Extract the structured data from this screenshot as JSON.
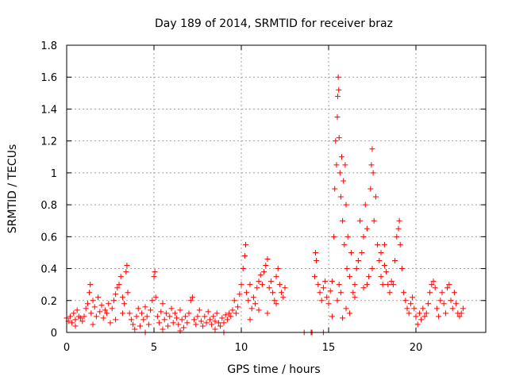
{
  "chart_data": {
    "type": "scatter",
    "title": "Day 189 of 2014, SRMTID for receiver braz",
    "xlabel": "GPS time / hours",
    "ylabel": "SRMTID / TECUs",
    "xlim": [
      0,
      24
    ],
    "ylim": [
      0,
      1.8
    ],
    "xticks": [
      {
        "value": 0,
        "label": "0"
      },
      {
        "value": 5,
        "label": "5"
      },
      {
        "value": 10,
        "label": "10"
      },
      {
        "value": 15,
        "label": "15"
      },
      {
        "value": 20,
        "label": "20"
      }
    ],
    "yticks": [
      {
        "value": 0,
        "label": "0"
      },
      {
        "value": 0.2,
        "label": "0.2"
      },
      {
        "value": 0.4,
        "label": "0.4"
      },
      {
        "value": 0.6,
        "label": "0.6"
      },
      {
        "value": 0.8,
        "label": "0.8"
      },
      {
        "value": 1.0,
        "label": "1"
      },
      {
        "value": 1.2,
        "label": "1.2"
      },
      {
        "value": 1.4,
        "label": "1.4"
      },
      {
        "value": 1.6,
        "label": "1.6"
      },
      {
        "value": 1.8,
        "label": "1.8"
      }
    ],
    "grid": true,
    "marker": "+",
    "colors": {
      "points": "#ff0000",
      "grid": "#a0a0a0",
      "axes": "#000000"
    },
    "series": [
      {
        "name": "SRMTID",
        "points": [
          [
            0.0,
            0.09
          ],
          [
            0.1,
            0.07
          ],
          [
            0.2,
            0.1
          ],
          [
            0.3,
            0.06
          ],
          [
            0.4,
            0.12
          ],
          [
            0.5,
            0.08
          ],
          [
            0.6,
            0.14
          ],
          [
            0.7,
            0.1
          ],
          [
            0.8,
            0.09
          ],
          [
            0.9,
            0.07
          ],
          [
            1.0,
            0.1
          ],
          [
            1.1,
            0.15
          ],
          [
            1.2,
            0.18
          ],
          [
            1.3,
            0.25
          ],
          [
            1.35,
            0.3
          ],
          [
            1.4,
            0.12
          ],
          [
            1.5,
            0.2
          ],
          [
            1.6,
            0.16
          ],
          [
            1.7,
            0.1
          ],
          [
            1.8,
            0.22
          ],
          [
            1.9,
            0.13
          ],
          [
            2.0,
            0.17
          ],
          [
            2.1,
            0.09
          ],
          [
            2.2,
            0.14
          ],
          [
            2.3,
            0.12
          ],
          [
            2.4,
            0.18
          ],
          [
            2.5,
            0.06
          ],
          [
            2.6,
            0.15
          ],
          [
            2.7,
            0.2
          ],
          [
            2.8,
            0.24
          ],
          [
            2.9,
            0.28
          ],
          [
            3.0,
            0.3
          ],
          [
            3.1,
            0.35
          ],
          [
            3.2,
            0.22
          ],
          [
            3.3,
            0.18
          ],
          [
            3.4,
            0.38
          ],
          [
            3.45,
            0.42
          ],
          [
            3.5,
            0.25
          ],
          [
            3.6,
            0.12
          ],
          [
            3.7,
            0.08
          ],
          [
            3.8,
            0.05
          ],
          [
            3.9,
            0.02
          ],
          [
            4.0,
            0.1
          ],
          [
            4.1,
            0.15
          ],
          [
            4.2,
            0.04
          ],
          [
            4.3,
            0.12
          ],
          [
            4.4,
            0.08
          ],
          [
            4.5,
            0.16
          ],
          [
            4.6,
            0.1
          ],
          [
            4.7,
            0.05
          ],
          [
            4.8,
            0.14
          ],
          [
            4.9,
            0.2
          ],
          [
            5.0,
            0.35
          ],
          [
            5.05,
            0.38
          ],
          [
            5.1,
            0.22
          ],
          [
            5.2,
            0.1
          ],
          [
            5.3,
            0.06
          ],
          [
            5.4,
            0.13
          ],
          [
            5.5,
            0.18
          ],
          [
            5.6,
            0.08
          ],
          [
            5.7,
            0.12
          ],
          [
            5.8,
            0.04
          ],
          [
            5.9,
            0.1
          ],
          [
            6.0,
            0.15
          ],
          [
            6.1,
            0.06
          ],
          [
            6.2,
            0.12
          ],
          [
            6.3,
            0.09
          ],
          [
            6.4,
            0.05
          ],
          [
            6.5,
            0.14
          ],
          [
            6.6,
            0.08
          ],
          [
            6.7,
            0.03
          ],
          [
            6.8,
            0.1
          ],
          [
            6.9,
            0.06
          ],
          [
            7.0,
            0.12
          ],
          [
            7.1,
            0.2
          ],
          [
            7.2,
            0.22
          ],
          [
            7.3,
            0.08
          ],
          [
            7.4,
            0.05
          ],
          [
            7.5,
            0.1
          ],
          [
            7.6,
            0.14
          ],
          [
            7.7,
            0.07
          ],
          [
            7.8,
            0.04
          ],
          [
            7.9,
            0.1
          ],
          [
            8.0,
            0.06
          ],
          [
            8.1,
            0.13
          ],
          [
            8.2,
            0.08
          ],
          [
            8.3,
            0.05
          ],
          [
            8.4,
            0.1
          ],
          [
            8.5,
            0.07
          ],
          [
            8.6,
            0.12
          ],
          [
            8.7,
            0.06
          ],
          [
            8.8,
            0.04
          ],
          [
            8.9,
            0.09
          ],
          [
            9.0,
            0.06
          ],
          [
            9.1,
            0.11
          ],
          [
            9.2,
            0.08
          ],
          [
            9.3,
            0.12
          ],
          [
            9.4,
            0.1
          ],
          [
            9.5,
            0.14
          ],
          [
            9.6,
            0.2
          ],
          [
            9.7,
            0.12
          ],
          [
            9.8,
            0.16
          ],
          [
            9.9,
            0.24
          ],
          [
            10.0,
            0.3
          ],
          [
            10.1,
            0.4
          ],
          [
            10.2,
            0.48
          ],
          [
            10.25,
            0.55
          ],
          [
            10.3,
            0.25
          ],
          [
            10.4,
            0.2
          ],
          [
            10.5,
            0.3
          ],
          [
            10.6,
            0.15
          ],
          [
            10.7,
            0.22
          ],
          [
            10.8,
            0.18
          ],
          [
            10.9,
            0.28
          ],
          [
            11.0,
            0.32
          ],
          [
            11.1,
            0.36
          ],
          [
            11.2,
            0.3
          ],
          [
            11.3,
            0.38
          ],
          [
            11.4,
            0.42
          ],
          [
            11.5,
            0.46
          ],
          [
            11.6,
            0.28
          ],
          [
            11.7,
            0.32
          ],
          [
            11.8,
            0.25
          ],
          [
            11.9,
            0.2
          ],
          [
            12.0,
            0.35
          ],
          [
            12.1,
            0.4
          ],
          [
            12.2,
            0.3
          ],
          [
            12.3,
            0.25
          ],
          [
            12.4,
            0.22
          ],
          [
            12.5,
            0.28
          ],
          [
            14.0,
            0.0
          ],
          [
            14.05,
            0.0
          ],
          [
            14.2,
            0.35
          ],
          [
            14.25,
            0.5
          ],
          [
            14.3,
            0.45
          ],
          [
            14.4,
            0.3
          ],
          [
            14.5,
            0.25
          ],
          [
            14.6,
            0.2
          ],
          [
            14.7,
            0.28
          ],
          [
            14.8,
            0.32
          ],
          [
            14.9,
            0.22
          ],
          [
            15.0,
            0.18
          ],
          [
            15.1,
            0.26
          ],
          [
            15.2,
            0.32
          ],
          [
            15.3,
            0.6
          ],
          [
            15.35,
            0.9
          ],
          [
            15.4,
            1.2
          ],
          [
            15.45,
            1.05
          ],
          [
            15.5,
            1.35
          ],
          [
            15.52,
            1.48
          ],
          [
            15.55,
            1.6
          ],
          [
            15.58,
            1.52
          ],
          [
            15.6,
            1.22
          ],
          [
            15.65,
            1.0
          ],
          [
            15.7,
            0.85
          ],
          [
            15.75,
            1.1
          ],
          [
            15.8,
            0.7
          ],
          [
            15.85,
            0.95
          ],
          [
            15.9,
            0.55
          ],
          [
            15.95,
            1.05
          ],
          [
            16.0,
            0.8
          ],
          [
            16.05,
            0.4
          ],
          [
            16.1,
            0.6
          ],
          [
            16.2,
            0.35
          ],
          [
            16.3,
            0.5
          ],
          [
            16.4,
            0.25
          ],
          [
            16.5,
            0.3
          ],
          [
            16.6,
            0.4
          ],
          [
            16.7,
            0.45
          ],
          [
            16.8,
            0.7
          ],
          [
            16.9,
            0.5
          ],
          [
            17.0,
            0.6
          ],
          [
            17.1,
            0.8
          ],
          [
            17.2,
            0.65
          ],
          [
            17.3,
            0.35
          ],
          [
            17.4,
            0.9
          ],
          [
            17.45,
            1.05
          ],
          [
            17.5,
            1.15
          ],
          [
            17.55,
            1.0
          ],
          [
            17.6,
            0.7
          ],
          [
            17.7,
            0.85
          ],
          [
            17.8,
            0.55
          ],
          [
            17.9,
            0.45
          ],
          [
            18.0,
            0.35
          ],
          [
            18.1,
            0.3
          ],
          [
            18.2,
            0.42
          ],
          [
            18.3,
            0.38
          ],
          [
            18.4,
            0.3
          ],
          [
            18.5,
            0.25
          ],
          [
            18.6,
            0.32
          ],
          [
            18.7,
            0.3
          ],
          [
            18.8,
            0.45
          ],
          [
            18.9,
            0.6
          ],
          [
            19.0,
            0.65
          ],
          [
            19.05,
            0.7
          ],
          [
            19.1,
            0.55
          ],
          [
            19.2,
            0.4
          ],
          [
            19.3,
            0.25
          ],
          [
            19.4,
            0.2
          ],
          [
            19.5,
            0.15
          ],
          [
            19.6,
            0.12
          ],
          [
            19.7,
            0.18
          ],
          [
            19.8,
            0.22
          ],
          [
            19.9,
            0.15
          ],
          [
            20.0,
            0.1
          ],
          [
            20.1,
            0.05
          ],
          [
            20.2,
            0.12
          ],
          [
            20.3,
            0.08
          ],
          [
            20.4,
            0.15
          ],
          [
            20.5,
            0.1
          ],
          [
            20.6,
            0.12
          ],
          [
            20.7,
            0.18
          ],
          [
            20.8,
            0.25
          ],
          [
            20.9,
            0.3
          ],
          [
            21.0,
            0.32
          ],
          [
            21.1,
            0.28
          ],
          [
            21.2,
            0.15
          ],
          [
            21.3,
            0.1
          ],
          [
            21.4,
            0.2
          ],
          [
            21.5,
            0.25
          ],
          [
            21.6,
            0.18
          ],
          [
            21.7,
            0.12
          ],
          [
            21.8,
            0.28
          ],
          [
            21.9,
            0.3
          ],
          [
            22.0,
            0.2
          ],
          [
            22.1,
            0.15
          ],
          [
            22.2,
            0.25
          ],
          [
            22.3,
            0.18
          ],
          [
            22.4,
            0.12
          ],
          [
            22.5,
            0.1
          ],
          [
            22.6,
            0.12
          ],
          [
            22.7,
            0.15
          ],
          [
            15.5,
            0.2
          ],
          [
            15.6,
            0.3
          ],
          [
            15.7,
            0.25
          ],
          [
            16.0,
            0.15
          ],
          [
            16.5,
            0.22
          ],
          [
            17.0,
            0.28
          ],
          [
            17.2,
            0.3
          ],
          [
            17.5,
            0.4
          ],
          [
            18.0,
            0.5
          ],
          [
            18.2,
            0.55
          ],
          [
            15.2,
            0.1
          ],
          [
            15.8,
            0.09
          ],
          [
            16.2,
            0.12
          ],
          [
            11.5,
            0.12
          ],
          [
            11.0,
            0.14
          ],
          [
            10.5,
            0.08
          ],
          [
            12.0,
            0.18
          ],
          [
            3.2,
            0.12
          ],
          [
            2.8,
            0.08
          ],
          [
            1.5,
            0.05
          ],
          [
            0.5,
            0.04
          ],
          [
            4.5,
            0.0
          ],
          [
            5.5,
            0.02
          ],
          [
            6.5,
            0.01
          ],
          [
            8.5,
            0.02
          ],
          [
            9.0,
            0.0
          ],
          [
            13.6,
            0.0
          ],
          [
            14.7,
            0.0
          ]
        ]
      }
    ]
  }
}
